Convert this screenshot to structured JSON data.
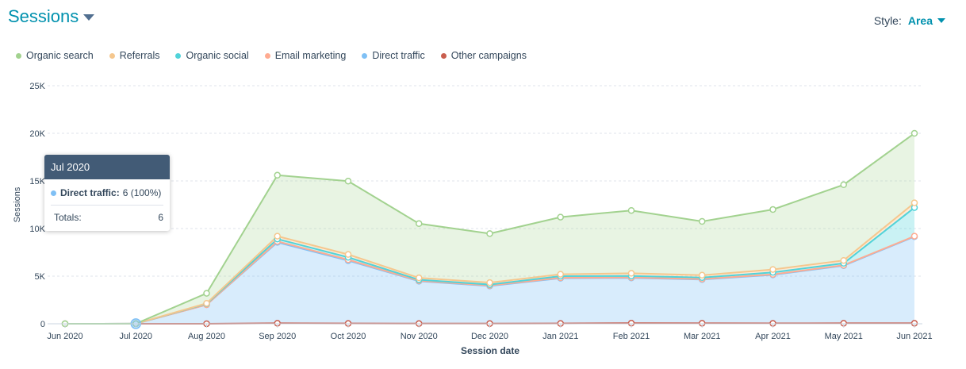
{
  "header": {
    "title": "Sessions"
  },
  "style_control": {
    "label": "Style:",
    "value": "Area"
  },
  "tooltip": {
    "title": "Jul 2020",
    "series_label": "Direct traffic:",
    "series_value": "6 (100%)",
    "totals_label": "Totals:",
    "totals_value": "6"
  },
  "colors": {
    "organic_search": "#a2d28f",
    "referrals": "#f5c78e",
    "organic_social": "#51d3d9",
    "email_marketing": "#ffab91",
    "direct_traffic": "#7fc0f5",
    "other_campaigns": "#c95e4e"
  },
  "chart_data": {
    "type": "area",
    "stacked": true,
    "xlabel": "Session date",
    "ylabel": "Sessions",
    "ylim": [
      0,
      25000
    ],
    "yticks": [
      "0",
      "5K",
      "10K",
      "15K",
      "20K",
      "25K"
    ],
    "yticks_values": [
      0,
      5000,
      10000,
      15000,
      20000,
      25000
    ],
    "grid": true,
    "legend_position": "top-left",
    "categories": [
      "Jun 2020",
      "Jul 2020",
      "Aug 2020",
      "Sep 2020",
      "Oct 2020",
      "Nov 2020",
      "Dec 2020",
      "Jan 2021",
      "Feb 2021",
      "Mar 2021",
      "Apr 2021",
      "May 2021",
      "Jun 2021"
    ],
    "series": [
      {
        "name": "Other campaigns",
        "color": "#c95e4e",
        "values": [
          0,
          0,
          0,
          50,
          30,
          20,
          20,
          30,
          60,
          50,
          40,
          50,
          50
        ]
      },
      {
        "name": "Direct traffic",
        "color": "#7fc0f5",
        "values": [
          0,
          6,
          2000,
          8500,
          6600,
          4450,
          3950,
          4750,
          4750,
          4600,
          5100,
          6050,
          9100
        ]
      },
      {
        "name": "Email marketing",
        "color": "#ffab91",
        "values": [
          0,
          0,
          0,
          100,
          100,
          50,
          50,
          50,
          50,
          50,
          50,
          50,
          50
        ]
      },
      {
        "name": "Organic social",
        "color": "#51d3d9",
        "values": [
          0,
          0,
          100,
          250,
          250,
          100,
          100,
          170,
          160,
          150,
          210,
          200,
          3000
        ]
      },
      {
        "name": "Referrals",
        "color": "#f5c78e",
        "values": [
          0,
          0,
          50,
          300,
          300,
          200,
          200,
          200,
          280,
          250,
          300,
          300,
          500
        ]
      },
      {
        "name": "Organic search",
        "color": "#a2d28f",
        "values": [
          0,
          0,
          1050,
          6400,
          7700,
          5700,
          5150,
          6000,
          6600,
          5650,
          6300,
          7950,
          7300
        ]
      }
    ],
    "legend_order": [
      "Organic search",
      "Referrals",
      "Organic social",
      "Email marketing",
      "Direct traffic",
      "Other campaigns"
    ]
  }
}
